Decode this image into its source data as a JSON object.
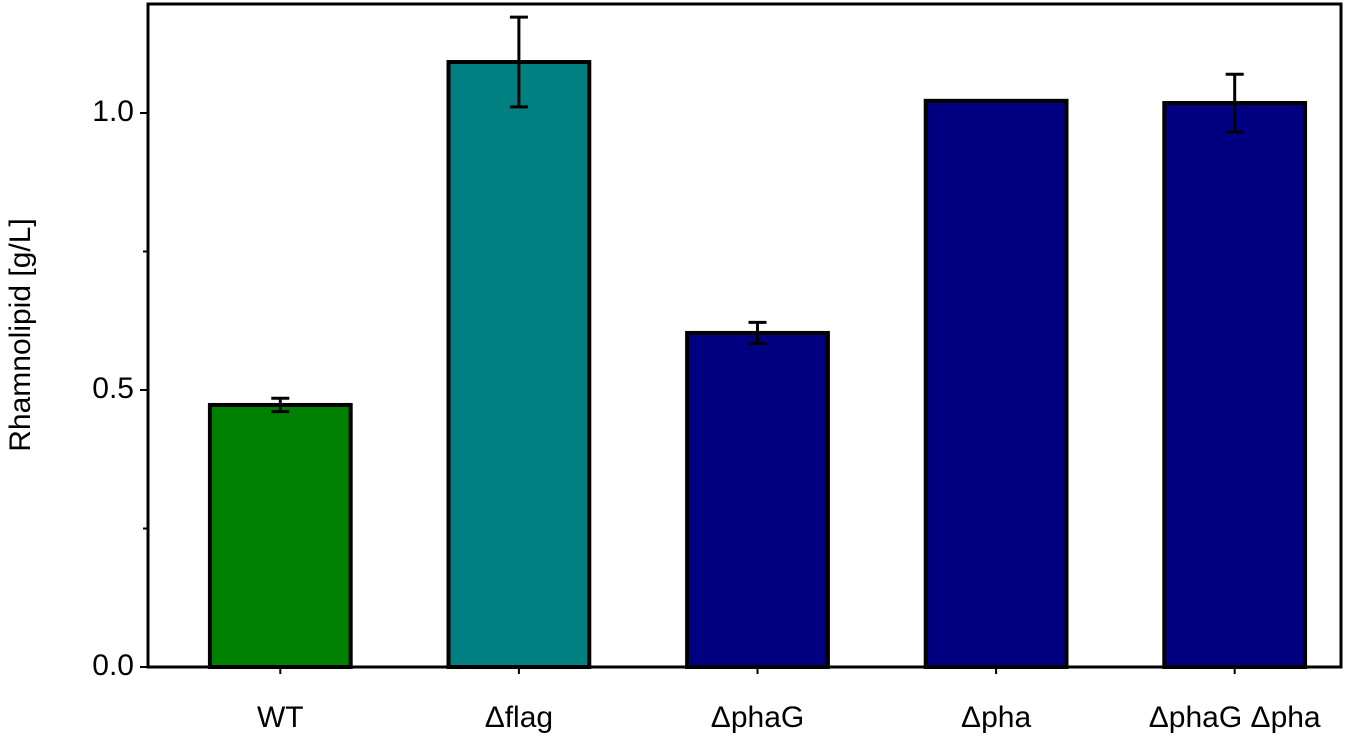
{
  "chart_data": {
    "type": "bar",
    "y_label": "Rhamnolipid [g/L]",
    "categories": [
      "WT",
      "Δflag",
      "ΔphaG",
      "Δpha",
      "ΔphaG Δpha"
    ],
    "values": [
      0.473,
      1.092,
      0.603,
      1.022,
      1.018
    ],
    "errors": [
      0.012,
      0.081,
      0.019,
      null,
      0.052
    ],
    "colors": [
      "#008000",
      "#008080",
      "#000080",
      "#000080",
      "#000080"
    ],
    "ylim": [
      0,
      1.2
    ],
    "yticks": [
      {
        "value": 0,
        "label": "0.0"
      },
      {
        "value": 0.5,
        "label": "0.5"
      },
      {
        "value": 1,
        "label": "1.0"
      }
    ],
    "yminorticks": [
      0.25,
      0.75
    ]
  }
}
